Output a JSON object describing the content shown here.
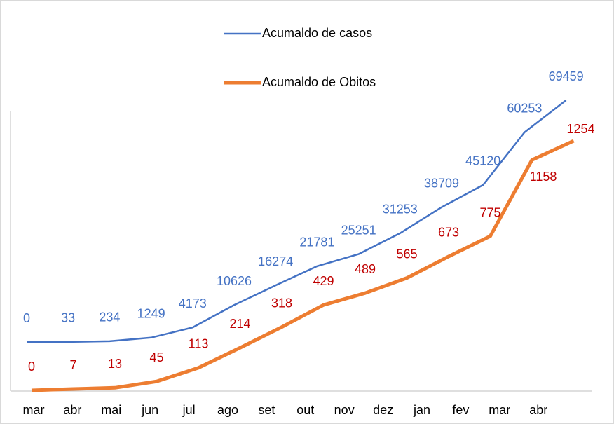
{
  "chart_data": {
    "type": "line",
    "categories": [
      "mar",
      "abr",
      "mai",
      "jun",
      "jul",
      "ago",
      "set",
      "out",
      "nov",
      "dez",
      "jan",
      "fev",
      "mar",
      "abr"
    ],
    "series": [
      {
        "name": "Acumaldo de casos",
        "color": "#4472c4",
        "label_color": "#4472c4",
        "values": [
          0,
          33,
          234,
          1249,
          4173,
          10626,
          16274,
          21781,
          25251,
          31253,
          38709,
          45120,
          60253,
          69459
        ]
      },
      {
        "name": "Acumaldo de Obitos",
        "color": "#ed7d31",
        "label_color": "#c00000",
        "values": [
          0,
          7,
          13,
          45,
          113,
          214,
          318,
          429,
          489,
          565,
          673,
          775,
          1158,
          1254
        ]
      }
    ]
  }
}
